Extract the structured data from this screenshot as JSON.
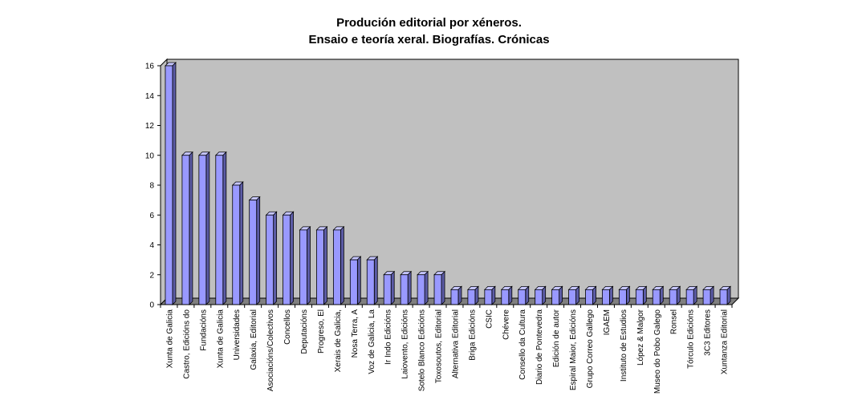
{
  "chart_data": {
    "type": "bar",
    "title": "Produción editorial por xéneros.",
    "subtitle": "Ensaio e teoría xeral. Biografías. Crónicas",
    "xlabel": "",
    "ylabel": "",
    "ylim": [
      0,
      16
    ],
    "yticks": [
      0,
      2,
      4,
      6,
      8,
      10,
      12,
      14,
      16
    ],
    "grid": false,
    "legend": "none",
    "style": "3d-column",
    "colors": {
      "bar_front": "#9999ff",
      "bar_side": "#5c5ca6",
      "bar_top": "#c6c6ff",
      "wall": "#c0c0c0",
      "floor": "#808080"
    },
    "categories": [
      "Xunta de Galicia",
      "Castro, Edicións do",
      "Fundacións",
      "Xunta de Galicia",
      "Universidades",
      "Galaxia, Editorial",
      "Asociacións/Colectivos",
      "Concellos",
      "Deputacións",
      "Progreso, El",
      "Xerais de Galicia,",
      "Nosa Terra, A",
      "Voz de Galicia, La",
      "Ir Indo Edicións",
      "Laiovento, Edicións",
      "Sotelo Blanco Edicións",
      "Toxosoutos, Editorial",
      "Alternativa Editorial",
      "Briga Edicións",
      "CSIC",
      "Chévere",
      "Consello da Cultura",
      "Diario de Pontevedra",
      "Edición de autor",
      "Espiral Maior, Edicións",
      "Grupo Correo Gallego",
      "IGAEM",
      "Instituto de Estudios",
      "López & Malgor",
      "Museo do Pobo Galego",
      "Ronsel",
      "Tórculo Edicións",
      "3C3 Editores",
      "Xuntanza Editorial"
    ],
    "values": [
      16,
      10,
      10,
      10,
      8,
      7,
      6,
      6,
      5,
      5,
      5,
      3,
      3,
      2,
      2,
      2,
      2,
      1,
      1,
      1,
      1,
      1,
      1,
      1,
      1,
      1,
      1,
      1,
      1,
      1,
      1,
      1,
      1,
      1
    ]
  }
}
